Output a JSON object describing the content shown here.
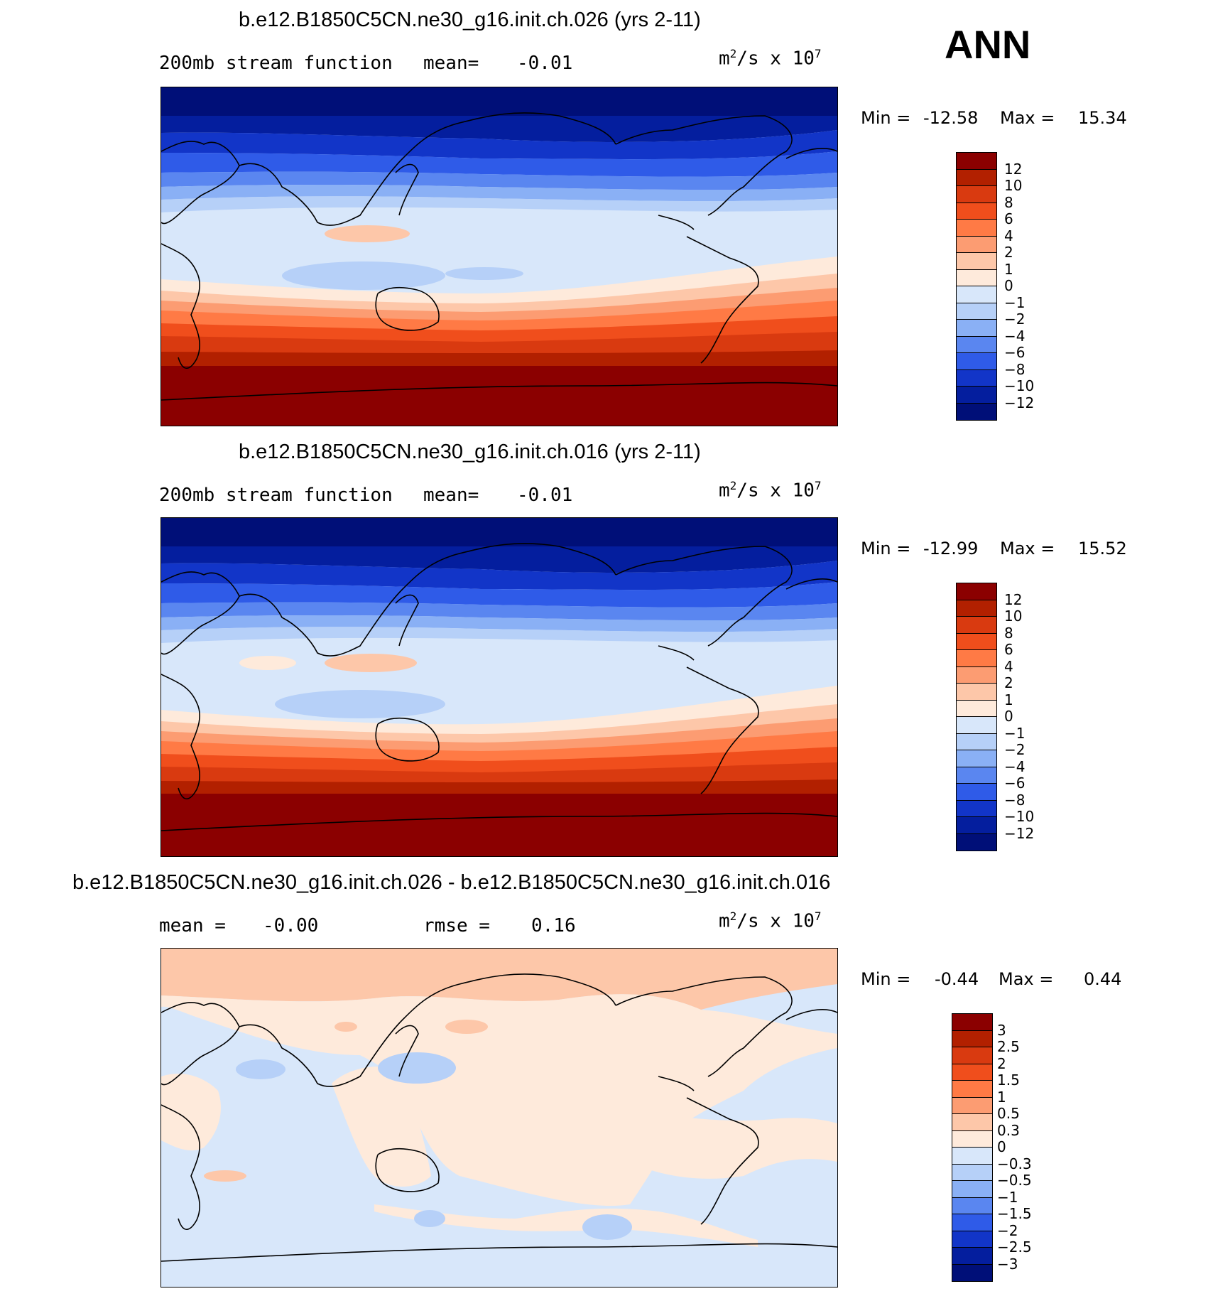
{
  "season": "ANN",
  "units_base": "m",
  "units_mid": "/s x 10",
  "units_sup1": "2",
  "units_sup2": "7",
  "panels": [
    {
      "title": "b.e12.B1850C5CN.ne30_g16.init.ch.026 (yrs 2-11)",
      "left_label": "200mb stream function",
      "mean_label": "mean=",
      "mean_value": "-0.01",
      "min_label": "Min =",
      "min_value": "-12.58",
      "max_label": "Max =",
      "max_value": "15.34",
      "colorbar_labels": [
        "12",
        "10",
        "8",
        "6",
        "4",
        "2",
        "1",
        "0",
        "−1",
        "−2",
        "−4",
        "−6",
        "−8",
        "−10",
        "−12"
      ]
    },
    {
      "title": "b.e12.B1850C5CN.ne30_g16.init.ch.016 (yrs 2-11)",
      "left_label": "200mb stream function",
      "mean_label": "mean=",
      "mean_value": "-0.01",
      "min_label": "Min =",
      "min_value": "-12.99",
      "max_label": "Max =",
      "max_value": "15.52",
      "colorbar_labels": [
        "12",
        "10",
        "8",
        "6",
        "4",
        "2",
        "1",
        "0",
        "−1",
        "−2",
        "−4",
        "−6",
        "−8",
        "−10",
        "−12"
      ]
    },
    {
      "title": "b.e12.B1850C5CN.ne30_g16.init.ch.026 - b.e12.B1850C5CN.ne30_g16.init.ch.016",
      "mean_label": "mean =",
      "mean_value": "-0.00",
      "rmse_label": "rmse =",
      "rmse_value": "0.16",
      "min_label": "Min =",
      "min_value": "-0.44",
      "max_label": "Max =",
      "max_value": "0.44",
      "colorbar_labels": [
        "3",
        "2.5",
        "2",
        "1.5",
        "1",
        "0.5",
        "0.3",
        "0",
        "−0.3",
        "−0.5",
        "−1",
        "−1.5",
        "−2",
        "−2.5",
        "−3"
      ]
    }
  ],
  "colors": {
    "scale": [
      "#8b0000",
      "#b22000",
      "#d93a10",
      "#f04e1c",
      "#ff7a45",
      "#fc9c72",
      "#fdc7a9",
      "#feeadb",
      "#d8e7fa",
      "#b6d0f8",
      "#8ab0f5",
      "#5a86f0",
      "#2f5be8",
      "#1235c8",
      "#041e9e",
      "#000f78"
    ]
  }
}
